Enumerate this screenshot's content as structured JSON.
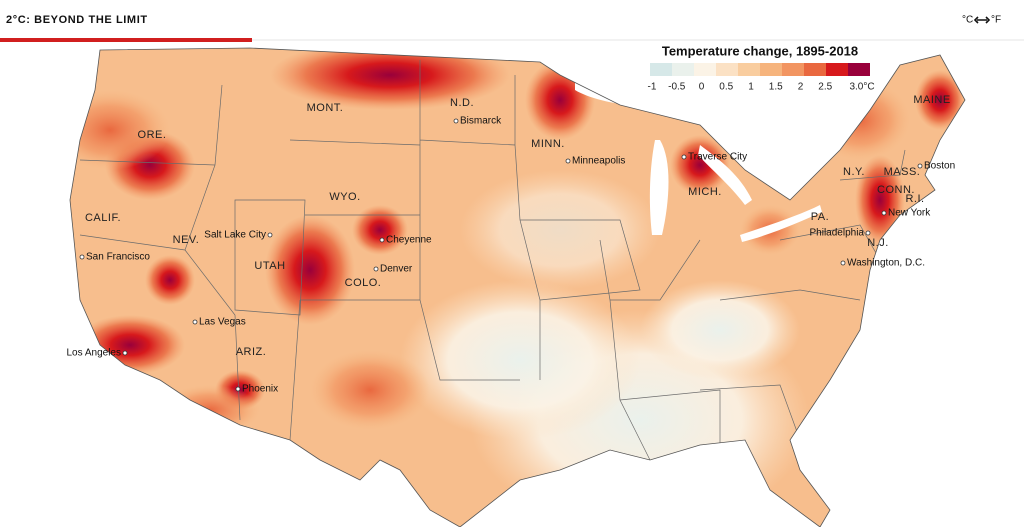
{
  "header": {
    "title": "2°C: BEYOND THE LIMIT",
    "unit_toggle": [
      "°C",
      "°F"
    ]
  },
  "legend": {
    "title": "Temperature change, 1895-2018",
    "ticks": [
      -1,
      -0.5,
      0,
      0.5,
      1,
      1.5,
      2,
      2.5,
      {
        "value": 3,
        "label": "3.0°C"
      }
    ],
    "colors": [
      "#d6e8e8",
      "#eaf1ec",
      "#fbf3e6",
      "#fbe1c4",
      "#f9cd9f",
      "#f6b47d",
      "#f29561",
      "#e9683f",
      "#d7191c",
      "#99003b"
    ]
  },
  "map": {
    "states": [
      "ORE.",
      "MONT.",
      "N.D.",
      "MINN.",
      "WYO.",
      "CALIF.",
      "NEV.",
      "UTAH",
      "COLO.",
      "ARIZ.",
      "MICH.",
      "N.Y.",
      "PA.",
      "N.J.",
      "MASS.",
      "CONN.",
      "R.I.",
      "MAINE"
    ],
    "cities": [
      "Bismarck",
      "Minneapolis",
      "Traverse City",
      "Salt Lake City",
      "Cheyenne",
      "Denver",
      "San Francisco",
      "Las Vegas",
      "Los Angeles",
      "Phoenix",
      "Boston",
      "New York",
      "Philadelphia",
      "Washington, D.C."
    ]
  }
}
